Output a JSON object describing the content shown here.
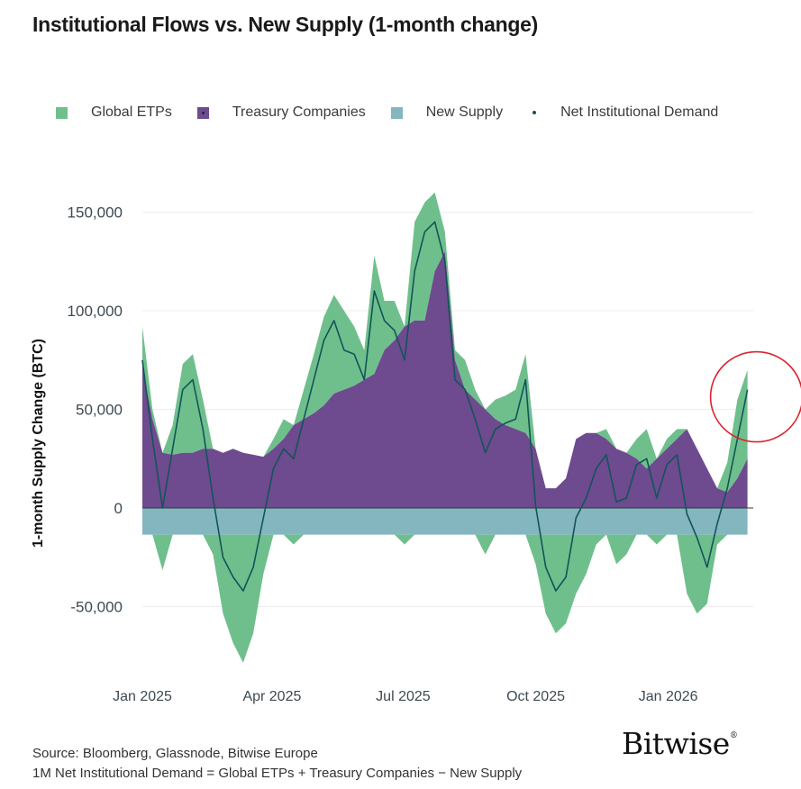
{
  "header": {
    "title": "Institutional Flows vs. New Supply (1-month change)"
  },
  "legend": [
    {
      "label": "Global ETPs",
      "color": "#6fbf8c",
      "kind": "square",
      "icon": "square-swatch"
    },
    {
      "label": "Treasury Companies",
      "color": "#6e4a8e",
      "kind": "square-dot",
      "icon": "square-swatch-with-dot"
    },
    {
      "label": "New Supply",
      "color": "#84b6bf",
      "kind": "square",
      "icon": "square-swatch"
    },
    {
      "label": "Net Institutional Demand",
      "color": "#12545a",
      "kind": "dot",
      "icon": "dot-marker"
    }
  ],
  "footer": {
    "source": "Source: Bloomberg, Glassnode, Bitwise Europe",
    "note": "1M Net Institutional Demand = Global ETPs + Treasury Companies − New Supply",
    "logo": "Bitwise",
    "logo_mark": "®"
  },
  "chart_data": {
    "type": "area",
    "title": "Institutional Flows vs. New Supply (1-month change)",
    "ylabel": "1-month Supply Change (BTC)",
    "xlabel": "",
    "ylim": [
      -80000,
      160000
    ],
    "yticks": [
      150000,
      100000,
      50000,
      0,
      -50000
    ],
    "ytick_labels": [
      "150,000",
      "100,000",
      "50,000",
      "0",
      "-50,000"
    ],
    "x_range": [
      "2025-01-01",
      "2026-03-01"
    ],
    "xticks": [
      {
        "date": "2025-01-01",
        "label": "Jan 2025"
      },
      {
        "date": "2025-04-01",
        "label": "Apr 2025"
      },
      {
        "date": "2025-07-01",
        "label": "Jul 2025"
      },
      {
        "date": "2025-10-01",
        "label": "Oct 2025"
      },
      {
        "date": "2026-01-01",
        "label": "Jan 2026"
      }
    ],
    "grid": true,
    "legend_position": "top",
    "annotation": "red circle highlighting latest Net Institutional Demand rise",
    "annotation_date": "2026-02-25",
    "annotation_value": 60000,
    "colors": {
      "etp": "#6fbf8c",
      "treasury": "#6e4a8e",
      "supply": "#84b6bf",
      "net": "#12545a",
      "annotation": "#d9232d"
    },
    "x": [
      "2025-01-01",
      "2025-01-08",
      "2025-01-15",
      "2025-01-22",
      "2025-01-29",
      "2025-02-05",
      "2025-02-12",
      "2025-02-19",
      "2025-02-26",
      "2025-03-05",
      "2025-03-12",
      "2025-03-19",
      "2025-03-26",
      "2025-04-02",
      "2025-04-09",
      "2025-04-16",
      "2025-04-23",
      "2025-04-30",
      "2025-05-07",
      "2025-05-14",
      "2025-05-21",
      "2025-05-28",
      "2025-06-04",
      "2025-06-11",
      "2025-06-18",
      "2025-06-25",
      "2025-07-02",
      "2025-07-09",
      "2025-07-16",
      "2025-07-23",
      "2025-07-30",
      "2025-08-06",
      "2025-08-13",
      "2025-08-20",
      "2025-08-27",
      "2025-09-03",
      "2025-09-10",
      "2025-09-17",
      "2025-09-24",
      "2025-10-01",
      "2025-10-08",
      "2025-10-15",
      "2025-10-22",
      "2025-10-29",
      "2025-11-05",
      "2025-11-12",
      "2025-11-19",
      "2025-11-26",
      "2025-12-03",
      "2025-12-10",
      "2025-12-17",
      "2025-12-24",
      "2025-12-31",
      "2026-01-07",
      "2026-01-14",
      "2026-01-21",
      "2026-01-28",
      "2026-02-04",
      "2026-02-11",
      "2026-02-18",
      "2026-02-25"
    ],
    "series": [
      {
        "name": "Global ETPs",
        "values": [
          20000,
          5000,
          -18000,
          15000,
          45000,
          50000,
          25000,
          -10000,
          -40000,
          -55000,
          -65000,
          -50000,
          -20000,
          5000,
          10000,
          -5000,
          15000,
          30000,
          45000,
          50000,
          40000,
          30000,
          15000,
          60000,
          25000,
          20000,
          -5000,
          50000,
          60000,
          40000,
          10000,
          5000,
          15000,
          5000,
          -10000,
          10000,
          15000,
          20000,
          40000,
          -15000,
          -40000,
          -50000,
          -45000,
          -30000,
          -20000,
          -5000,
          5000,
          -15000,
          -10000,
          10000,
          20000,
          -5000,
          5000,
          5000,
          -30000,
          -40000,
          -35000,
          -5000,
          15000,
          40000,
          45000
        ]
      },
      {
        "name": "Treasury Companies",
        "values": [
          72000,
          45000,
          28000,
          27000,
          28000,
          28000,
          30000,
          30000,
          28000,
          30000,
          28000,
          27000,
          26000,
          30000,
          35000,
          42000,
          45000,
          48000,
          52000,
          58000,
          60000,
          62000,
          65000,
          68000,
          80000,
          85000,
          92000,
          95000,
          95000,
          120000,
          130000,
          75000,
          60000,
          55000,
          50000,
          45000,
          42000,
          40000,
          38000,
          30000,
          10000,
          10000,
          15000,
          35000,
          38000,
          38000,
          35000,
          30000,
          28000,
          25000,
          20000,
          25000,
          30000,
          35000,
          40000,
          30000,
          20000,
          10000,
          8000,
          15000,
          25000
        ]
      },
      {
        "name": "New Supply",
        "values": [
          -13500,
          -13500,
          -13500,
          -13500,
          -13500,
          -13500,
          -13500,
          -13500,
          -13500,
          -13500,
          -13500,
          -13500,
          -13500,
          -13500,
          -13500,
          -13500,
          -13500,
          -13500,
          -13500,
          -13500,
          -13500,
          -13500,
          -13500,
          -13500,
          -13500,
          -13500,
          -13500,
          -13500,
          -13500,
          -13500,
          -13500,
          -13500,
          -13500,
          -13500,
          -13500,
          -13500,
          -13500,
          -13500,
          -13500,
          -13500,
          -13500,
          -13500,
          -13500,
          -13500,
          -13500,
          -13500,
          -13500,
          -13500,
          -13500,
          -13500,
          -13500,
          -13500,
          -13500,
          -13500,
          -13500,
          -13500,
          -13500,
          -13500,
          -13500,
          -13500,
          -13500
        ]
      },
      {
        "name": "Net Institutional Demand",
        "values": [
          75000,
          35000,
          0,
          30000,
          60000,
          65000,
          40000,
          5000,
          -25000,
          -35000,
          -42000,
          -30000,
          -5000,
          20000,
          30000,
          25000,
          45000,
          65000,
          85000,
          95000,
          80000,
          78000,
          65000,
          110000,
          95000,
          90000,
          75000,
          120000,
          140000,
          145000,
          125000,
          65000,
          60000,
          45000,
          28000,
          40000,
          43000,
          45000,
          65000,
          1000,
          -30000,
          -42000,
          -35000,
          -5000,
          5000,
          20000,
          27000,
          3000,
          5000,
          22000,
          25000,
          5000,
          22000,
          27000,
          -3000,
          -15000,
          -30000,
          -8000,
          10000,
          35000,
          60000
        ]
      }
    ]
  }
}
